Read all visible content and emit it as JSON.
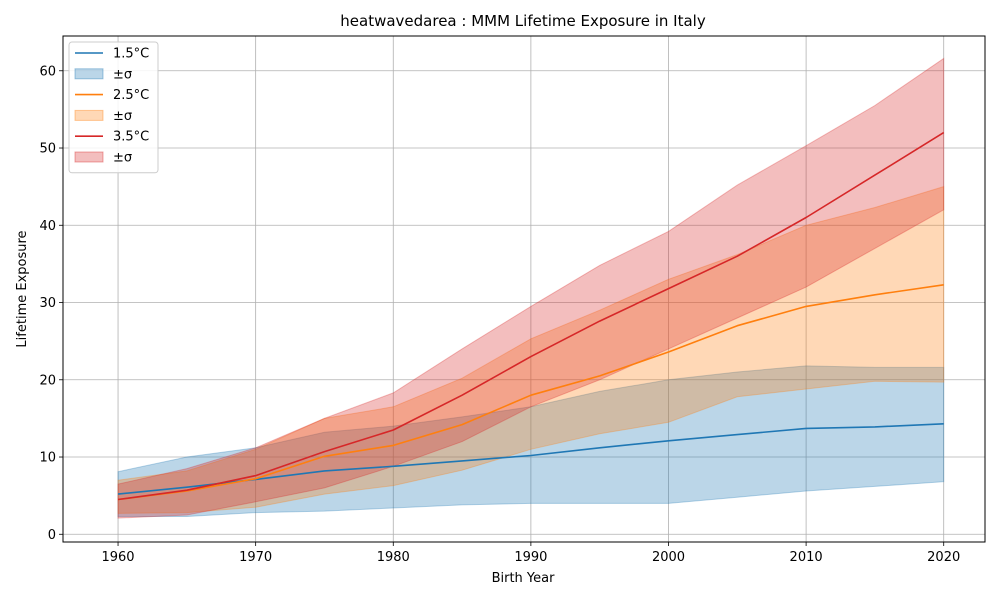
{
  "chart_data": {
    "type": "area",
    "title": "heatwavedarea : MMM Lifetime Exposure in Italy",
    "xlabel": "Birth Year",
    "ylabel": "Lifetime Exposure",
    "xlim": [
      1956,
      2023
    ],
    "ylim": [
      -1,
      64.5
    ],
    "xticks": [
      1960,
      1970,
      1980,
      1990,
      2000,
      2010,
      2020
    ],
    "yticks": [
      0,
      10,
      20,
      30,
      40,
      50,
      60
    ],
    "grid": true,
    "legend_position": "top-left",
    "x": [
      1960,
      1965,
      1970,
      1975,
      1980,
      1985,
      1990,
      1995,
      2000,
      2005,
      2010,
      2015,
      2020
    ],
    "series": [
      {
        "name": "1.5°C",
        "band_label": "±σ",
        "color": "#1f77b4",
        "values": [
          5.2,
          6.1,
          7.1,
          8.2,
          8.8,
          9.5,
          10.2,
          11.2,
          12.1,
          12.9,
          13.7,
          13.9,
          14.3
        ],
        "lower": [
          2.3,
          2.3,
          2.8,
          3.0,
          3.4,
          3.8,
          4.0,
          4.0,
          4.0,
          4.8,
          5.6,
          6.2,
          6.8
        ],
        "upper": [
          8.1,
          10.0,
          11.2,
          13.2,
          14.0,
          15.2,
          16.5,
          18.5,
          20.0,
          21.0,
          21.8,
          21.6,
          21.6
        ]
      },
      {
        "name": "2.5°C",
        "band_label": "±σ",
        "color": "#ff7f0e",
        "values": [
          4.5,
          5.6,
          7.2,
          10.1,
          11.5,
          14.2,
          18.0,
          20.5,
          23.6,
          27.0,
          29.5,
          31.0,
          32.3
        ],
        "lower": [
          2.7,
          2.8,
          3.5,
          5.2,
          6.3,
          8.3,
          11.0,
          13.0,
          14.5,
          17.8,
          18.8,
          19.8,
          19.7
        ],
        "upper": [
          7.0,
          8.2,
          11.0,
          15.0,
          16.5,
          20.2,
          25.3,
          29.0,
          33.0,
          36.2,
          40.0,
          42.3,
          45.0
        ]
      },
      {
        "name": "3.5°C",
        "band_label": "±σ",
        "color": "#d62728",
        "values": [
          4.5,
          5.7,
          7.6,
          10.7,
          13.5,
          18.0,
          23.0,
          27.6,
          31.8,
          36.0,
          41.0,
          46.5,
          52.0
        ],
        "lower": [
          2.1,
          2.5,
          4.2,
          6.0,
          8.8,
          12.0,
          16.5,
          20.0,
          24.0,
          28.0,
          32.0,
          37.0,
          42.0
        ],
        "upper": [
          6.5,
          8.5,
          11.2,
          15.0,
          18.3,
          24.0,
          29.5,
          34.8,
          39.2,
          45.2,
          50.3,
          55.5,
          61.6
        ]
      }
    ]
  }
}
